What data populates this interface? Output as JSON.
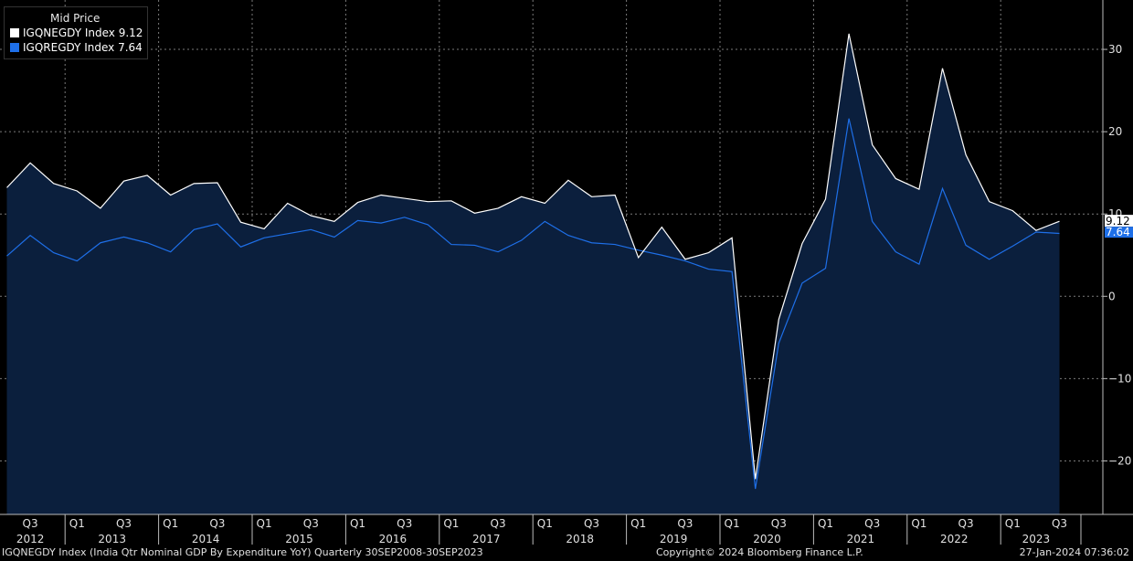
{
  "legend": {
    "title": "Mid Price",
    "series": [
      {
        "label": "IGQNEGDY Index 9.12",
        "color": "#ffffff"
      },
      {
        "label": "IGQREGDY Index 7.64",
        "color": "#1e6fe8"
      }
    ]
  },
  "footer": {
    "description": "IGQNEGDY Index (India Qtr Nominal GDP By Expenditure YoY)  Quarterly 30SEP2008-30SEP2023",
    "copyright": "Copyright© 2024 Bloomberg Finance L.P.",
    "timestamp": "27-Jan-2024 07:36:02"
  },
  "colors": {
    "background": "#000000",
    "area_fill": "#0b1f3d",
    "nominal": "#ffffff",
    "real": "#1e6fe8",
    "grid": "#7a7a7a"
  },
  "chart_data": {
    "type": "line",
    "ylim": [
      -26.5,
      36
    ],
    "yticks": [
      -20,
      -10,
      0,
      10,
      20,
      30
    ],
    "x_quarter_labels": [
      "Q3",
      "Q1",
      "Q3",
      "Q1",
      "Q3",
      "Q1",
      "Q3",
      "Q1",
      "Q3",
      "Q1",
      "Q3",
      "Q1",
      "Q3",
      "Q1",
      "Q3",
      "Q1",
      "Q3",
      "Q1",
      "Q3",
      "Q1",
      "Q3",
      "Q1",
      "Q3"
    ],
    "x_year_labels": [
      "2012",
      "2013",
      "2014",
      "2015",
      "2016",
      "2017",
      "2018",
      "2019",
      "2020",
      "2021",
      "2022",
      "2023"
    ],
    "x": [
      "2012Q2",
      "2012Q3",
      "2012Q4",
      "2013Q1",
      "2013Q2",
      "2013Q3",
      "2013Q4",
      "2014Q1",
      "2014Q2",
      "2014Q3",
      "2014Q4",
      "2015Q1",
      "2015Q2",
      "2015Q3",
      "2015Q4",
      "2016Q1",
      "2016Q2",
      "2016Q3",
      "2016Q4",
      "2017Q1",
      "2017Q2",
      "2017Q3",
      "2017Q4",
      "2018Q1",
      "2018Q2",
      "2018Q3",
      "2018Q4",
      "2019Q1",
      "2019Q2",
      "2019Q3",
      "2019Q4",
      "2020Q1",
      "2020Q2",
      "2020Q3",
      "2020Q4",
      "2021Q1",
      "2021Q2",
      "2021Q3",
      "2021Q4",
      "2022Q1",
      "2022Q2",
      "2022Q3",
      "2022Q4",
      "2023Q1",
      "2023Q2",
      "2023Q3"
    ],
    "series": [
      {
        "name": "IGQNEGDY Index",
        "values": [
          13.2,
          16.2,
          13.7,
          12.8,
          10.7,
          14.0,
          14.7,
          12.3,
          13.7,
          13.8,
          9.0,
          8.2,
          11.3,
          9.8,
          9.1,
          11.4,
          12.3,
          11.9,
          11.5,
          11.6,
          10.1,
          10.7,
          12.1,
          11.3,
          14.1,
          12.1,
          12.3,
          4.7,
          8.4,
          4.5,
          5.3,
          7.1,
          -22.2,
          -2.8,
          6.4,
          11.8,
          31.9,
          18.4,
          14.3,
          13.0,
          27.7,
          17.2,
          11.5,
          10.4,
          8.0,
          9.12
        ]
      },
      {
        "name": "IGQREGDY Index",
        "values": [
          4.9,
          7.4,
          5.3,
          4.3,
          6.5,
          7.2,
          6.5,
          5.4,
          8.1,
          8.8,
          6.0,
          7.1,
          7.6,
          8.1,
          7.2,
          9.2,
          8.9,
          9.6,
          8.7,
          6.3,
          6.2,
          5.4,
          6.8,
          9.1,
          7.4,
          6.5,
          6.3,
          5.6,
          5.0,
          4.3,
          3.3,
          3.0,
          -23.4,
          -5.7,
          1.6,
          3.4,
          21.6,
          9.1,
          5.4,
          3.9,
          13.1,
          6.2,
          4.5,
          6.1,
          7.8,
          7.64
        ]
      }
    ],
    "last_value_labels": [
      "9.12",
      "7.64"
    ]
  }
}
